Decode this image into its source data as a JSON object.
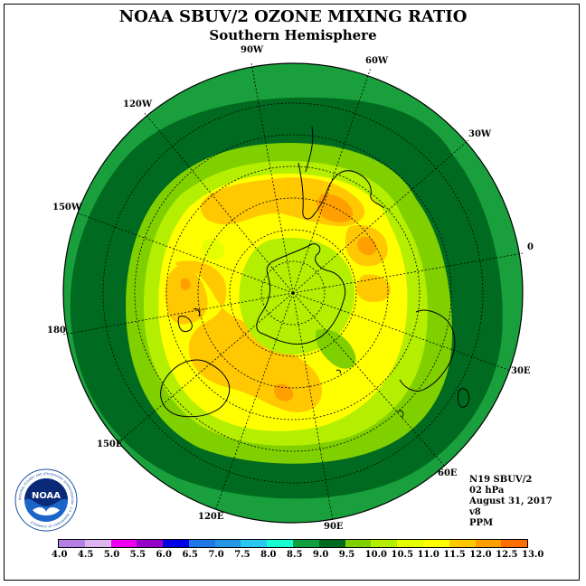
{
  "header": {
    "title": "NOAA SBUV/2 OZONE MIXING RATIO",
    "subtitle": "Southern Hemisphere"
  },
  "longitude_labels": [
    {
      "id": "90w",
      "text": "90W"
    },
    {
      "id": "60w",
      "text": "60W"
    },
    {
      "id": "30w",
      "text": "30W"
    },
    {
      "id": "0",
      "text": "0"
    },
    {
      "id": "30e",
      "text": "30E"
    },
    {
      "id": "60e",
      "text": "60E"
    },
    {
      "id": "90e",
      "text": "90E"
    },
    {
      "id": "120e",
      "text": "120E"
    },
    {
      "id": "150e",
      "text": "150E"
    },
    {
      "id": "180",
      "text": "180"
    },
    {
      "id": "150w",
      "text": "150W"
    },
    {
      "id": "120w",
      "text": "120W"
    }
  ],
  "info": {
    "satellite": "N19 SBUV/2",
    "level": "02 hPa",
    "date": "August 31, 2017",
    "version": "v8",
    "units": "PPM"
  },
  "logo": {
    "text": "NOAA",
    "ring_text": "NATIONAL OCEANIC AND ATMOSPHERIC ADMINISTRATION · U.S. DEPARTMENT OF COMMERCE"
  },
  "colorbar": {
    "labels": [
      "4.0",
      "4.5",
      "5.0",
      "5.5",
      "6.0",
      "6.5",
      "7.0",
      "7.5",
      "8.0",
      "8.5",
      "9.0",
      "9.5",
      "10.0",
      "10.5",
      "11.0",
      "11.5",
      "12.0",
      "12.5",
      "13.0"
    ],
    "colors": [
      "#b57fe6",
      "#dcb4f0",
      "#f000f0",
      "#9600c8",
      "#0000e6",
      "#1e78e6",
      "#2896e6",
      "#28c8f0",
      "#19ffd2",
      "#10a040",
      "#006b20",
      "#80d000",
      "#b4ee00",
      "#e6ff00",
      "#ffff00",
      "#ffc800",
      "#ffa000",
      "#ff6e00",
      "#ff0000",
      "#ff0000",
      "#9b5a3c"
    ]
  },
  "map_colors": {
    "level_8_0": "#19a03c",
    "level_8_5": "#006b20",
    "level_9_0": "#80d000",
    "level_9_5": "#b4ee00",
    "level_10_0": "#e6ff00",
    "level_10_5": "#ffff00",
    "level_11_0": "#ffc800",
    "level_11_5": "#ffa000",
    "cyan_patch": "#19ffd2"
  }
}
